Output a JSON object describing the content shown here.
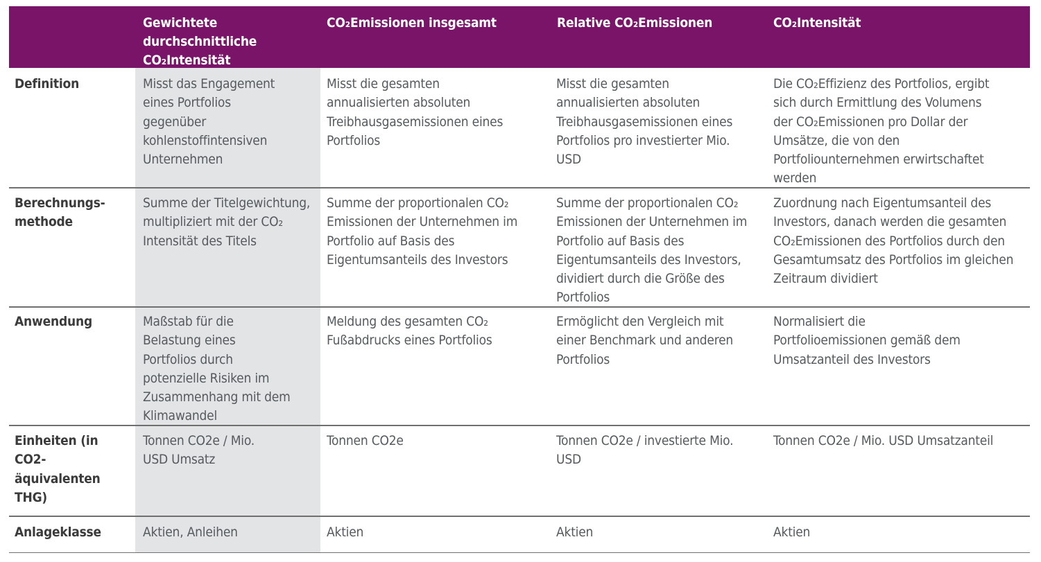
{
  "header": {
    "col1": "Gewichtete\ndurchschnittliche\nCO₂Intensität",
    "col2": "CO₂Emissionen insgesamt",
    "col3": "Relative CO₂Emissionen",
    "col4": "CO₂Intensität"
  },
  "rows": [
    {
      "label": "Definition",
      "c1": "Misst das Engagement\neines Portfolios\ngegenüber\nkohlenstoffintensiven\nUnternehmen",
      "c2": "Misst die gesamten\nannualisierten absoluten\nTreibhausgasemissionen eines\nPortfolios",
      "c3": "Misst die gesamten\nannualisierten absoluten\nTreibhausgasemissionen eines\nPortfolios pro investierter Mio.\nUSD",
      "c4": "Die CO₂Effizienz des Portfolios, ergibt\nsich durch Ermittlung des Volumens\nder CO₂Emissionen pro Dollar der\nUmsätze, die von den\nPortfoliounternehmen erwirtschaftet\nwerden"
    },
    {
      "label": "Berechnungs-\nmethode",
      "c1": "Summe der Titelgewichtung,\nmultipliziert mit der CO₂\nIntensität des Titels",
      "c2": "Summe der proportionalen CO₂\nEmissionen der Unternehmen im\nPortfolio auf Basis des\nEigentumsanteils des Investors",
      "c3": "Summe der proportionalen CO₂\nEmissionen der Unternehmen im\nPortfolio auf Basis des\nEigentumsanteils des Investors,\ndividiert durch die Größe des\nPortfolios",
      "c4": "Zuordnung nach Eigentumsanteil des\nInvestors, danach werden die gesamten\nCO₂Emissionen des Portfolios durch den\nGesamtumsatz des Portfolios im gleichen\nZeitraum dividiert"
    },
    {
      "label": "Anwendung",
      "c1": "Maßstab für die\nBelastung eines\nPortfolios durch\npotenzielle Risiken im\nZusammenhang mit dem\nKlimawandel",
      "c2": "Meldung des gesamten CO₂\nFußabdrucks eines Portfolios",
      "c3": "Ermöglicht den Vergleich mit\neiner Benchmark und anderen\nPortfolios",
      "c4": "Normalisiert die\nPortfolioemissionen gemäß dem\nUmsatzanteil des Investors"
    },
    {
      "label": "Einheiten (in\nCO2-\näquivalenten\nTHG)",
      "c1": "Tonnen CO2e / Mio.\nUSD Umsatz",
      "c2": "Tonnen CO2e",
      "c3": "Tonnen CO2e / investierte Mio.\nUSD",
      "c4": "Tonnen CO2e / Mio. USD Umsatzanteil"
    },
    {
      "label": "Anlageklasse",
      "c1": "Aktien, Anleihen",
      "c2": "Aktien",
      "c3": "Aktien",
      "c4": "Aktien"
    }
  ]
}
